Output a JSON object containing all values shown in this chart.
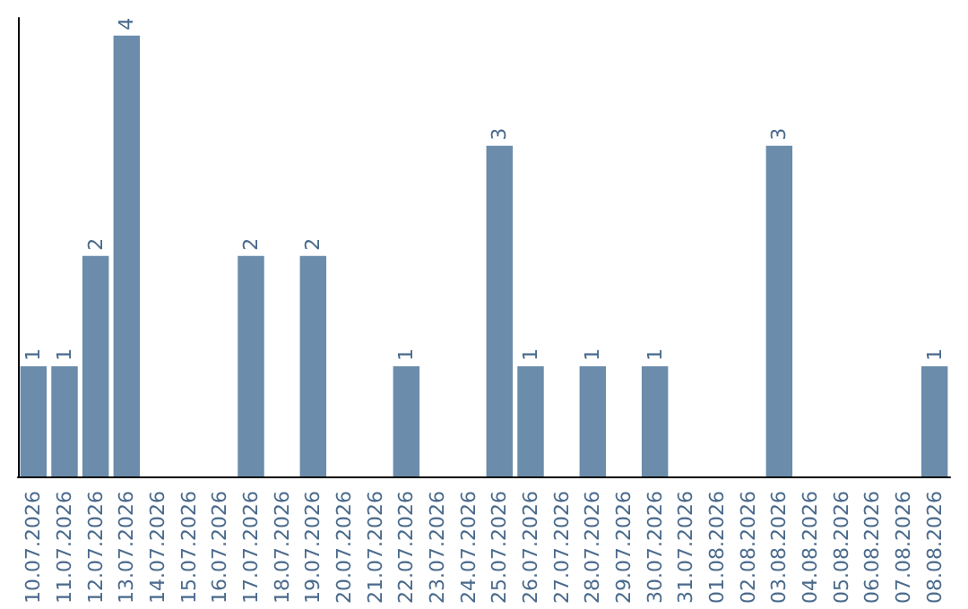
{
  "chart_data": {
    "type": "bar",
    "categories": [
      "10.07.2026",
      "11.07.2026",
      "12.07.2026",
      "13.07.2026",
      "14.07.2026",
      "15.07.2026",
      "16.07.2026",
      "17.07.2026",
      "18.07.2026",
      "19.07.2026",
      "20.07.2026",
      "21.07.2026",
      "22.07.2026",
      "23.07.2026",
      "24.07.2026",
      "25.07.2026",
      "26.07.2026",
      "27.07.2026",
      "28.07.2026",
      "29.07.2026",
      "30.07.2026",
      "31.07.2026",
      "01.08.2026",
      "02.08.2026",
      "03.08.2026",
      "04.08.2026",
      "05.08.2026",
      "06.08.2026",
      "07.08.2026",
      "08.08.2026"
    ],
    "values": [
      1,
      1,
      2,
      4,
      0,
      0,
      0,
      2,
      0,
      2,
      0,
      0,
      1,
      0,
      0,
      3,
      1,
      0,
      1,
      0,
      1,
      0,
      0,
      0,
      3,
      0,
      0,
      0,
      0,
      1
    ],
    "value_labels": [
      "1",
      "1",
      "2",
      "4",
      null,
      null,
      null,
      "2",
      null,
      "2",
      null,
      null,
      "1",
      null,
      null,
      "3",
      "1",
      null,
      "1",
      null,
      "1",
      null,
      null,
      null,
      "3",
      null,
      null,
      null,
      null,
      "1"
    ],
    "color": "#6b8cab",
    "grid": false,
    "tick_labels": "x"
  }
}
